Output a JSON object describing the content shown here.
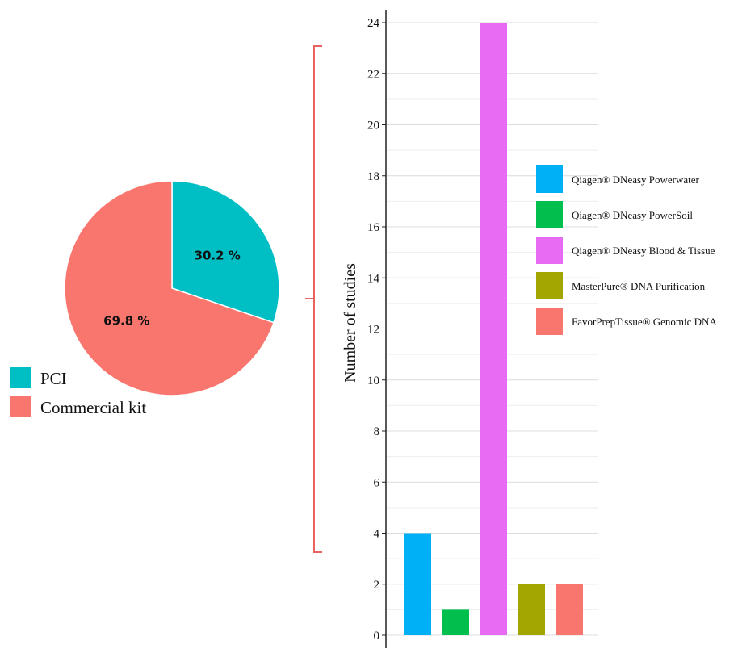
{
  "chart_data": [
    {
      "type": "pie",
      "labels": [
        "PCI",
        "Commercial kit"
      ],
      "values": [
        30.2,
        69.8
      ],
      "value_labels": [
        "30.2 %",
        "69.8 %"
      ],
      "colors": [
        "#00BFC4",
        "#F8766D"
      ],
      "legend_position": "bottom-left"
    },
    {
      "type": "bar",
      "categories": [
        "Qiagen® DNeasy Powerwater",
        "Qiagen® DNeasy PowerSoil",
        "Qiagen® DNeasy Blood & Tissue",
        "MasterPure® DNA Purification",
        "FavorPrepTissue® Genomic DNA"
      ],
      "values": [
        4,
        1,
        24,
        2,
        2
      ],
      "colors": [
        "#00B0F6",
        "#00BF4C",
        "#E76BF3",
        "#A3A500",
        "#F8766D"
      ],
      "ylabel": "Number of studies",
      "ylim": [
        0,
        24
      ],
      "yticks": [
        "0",
        "2",
        "4",
        "6",
        "8",
        "10",
        "12",
        "14",
        "16",
        "18",
        "20",
        "22",
        "24"
      ],
      "grid": true,
      "legend_position": "right"
    }
  ],
  "bracket_color": "#E8635F"
}
